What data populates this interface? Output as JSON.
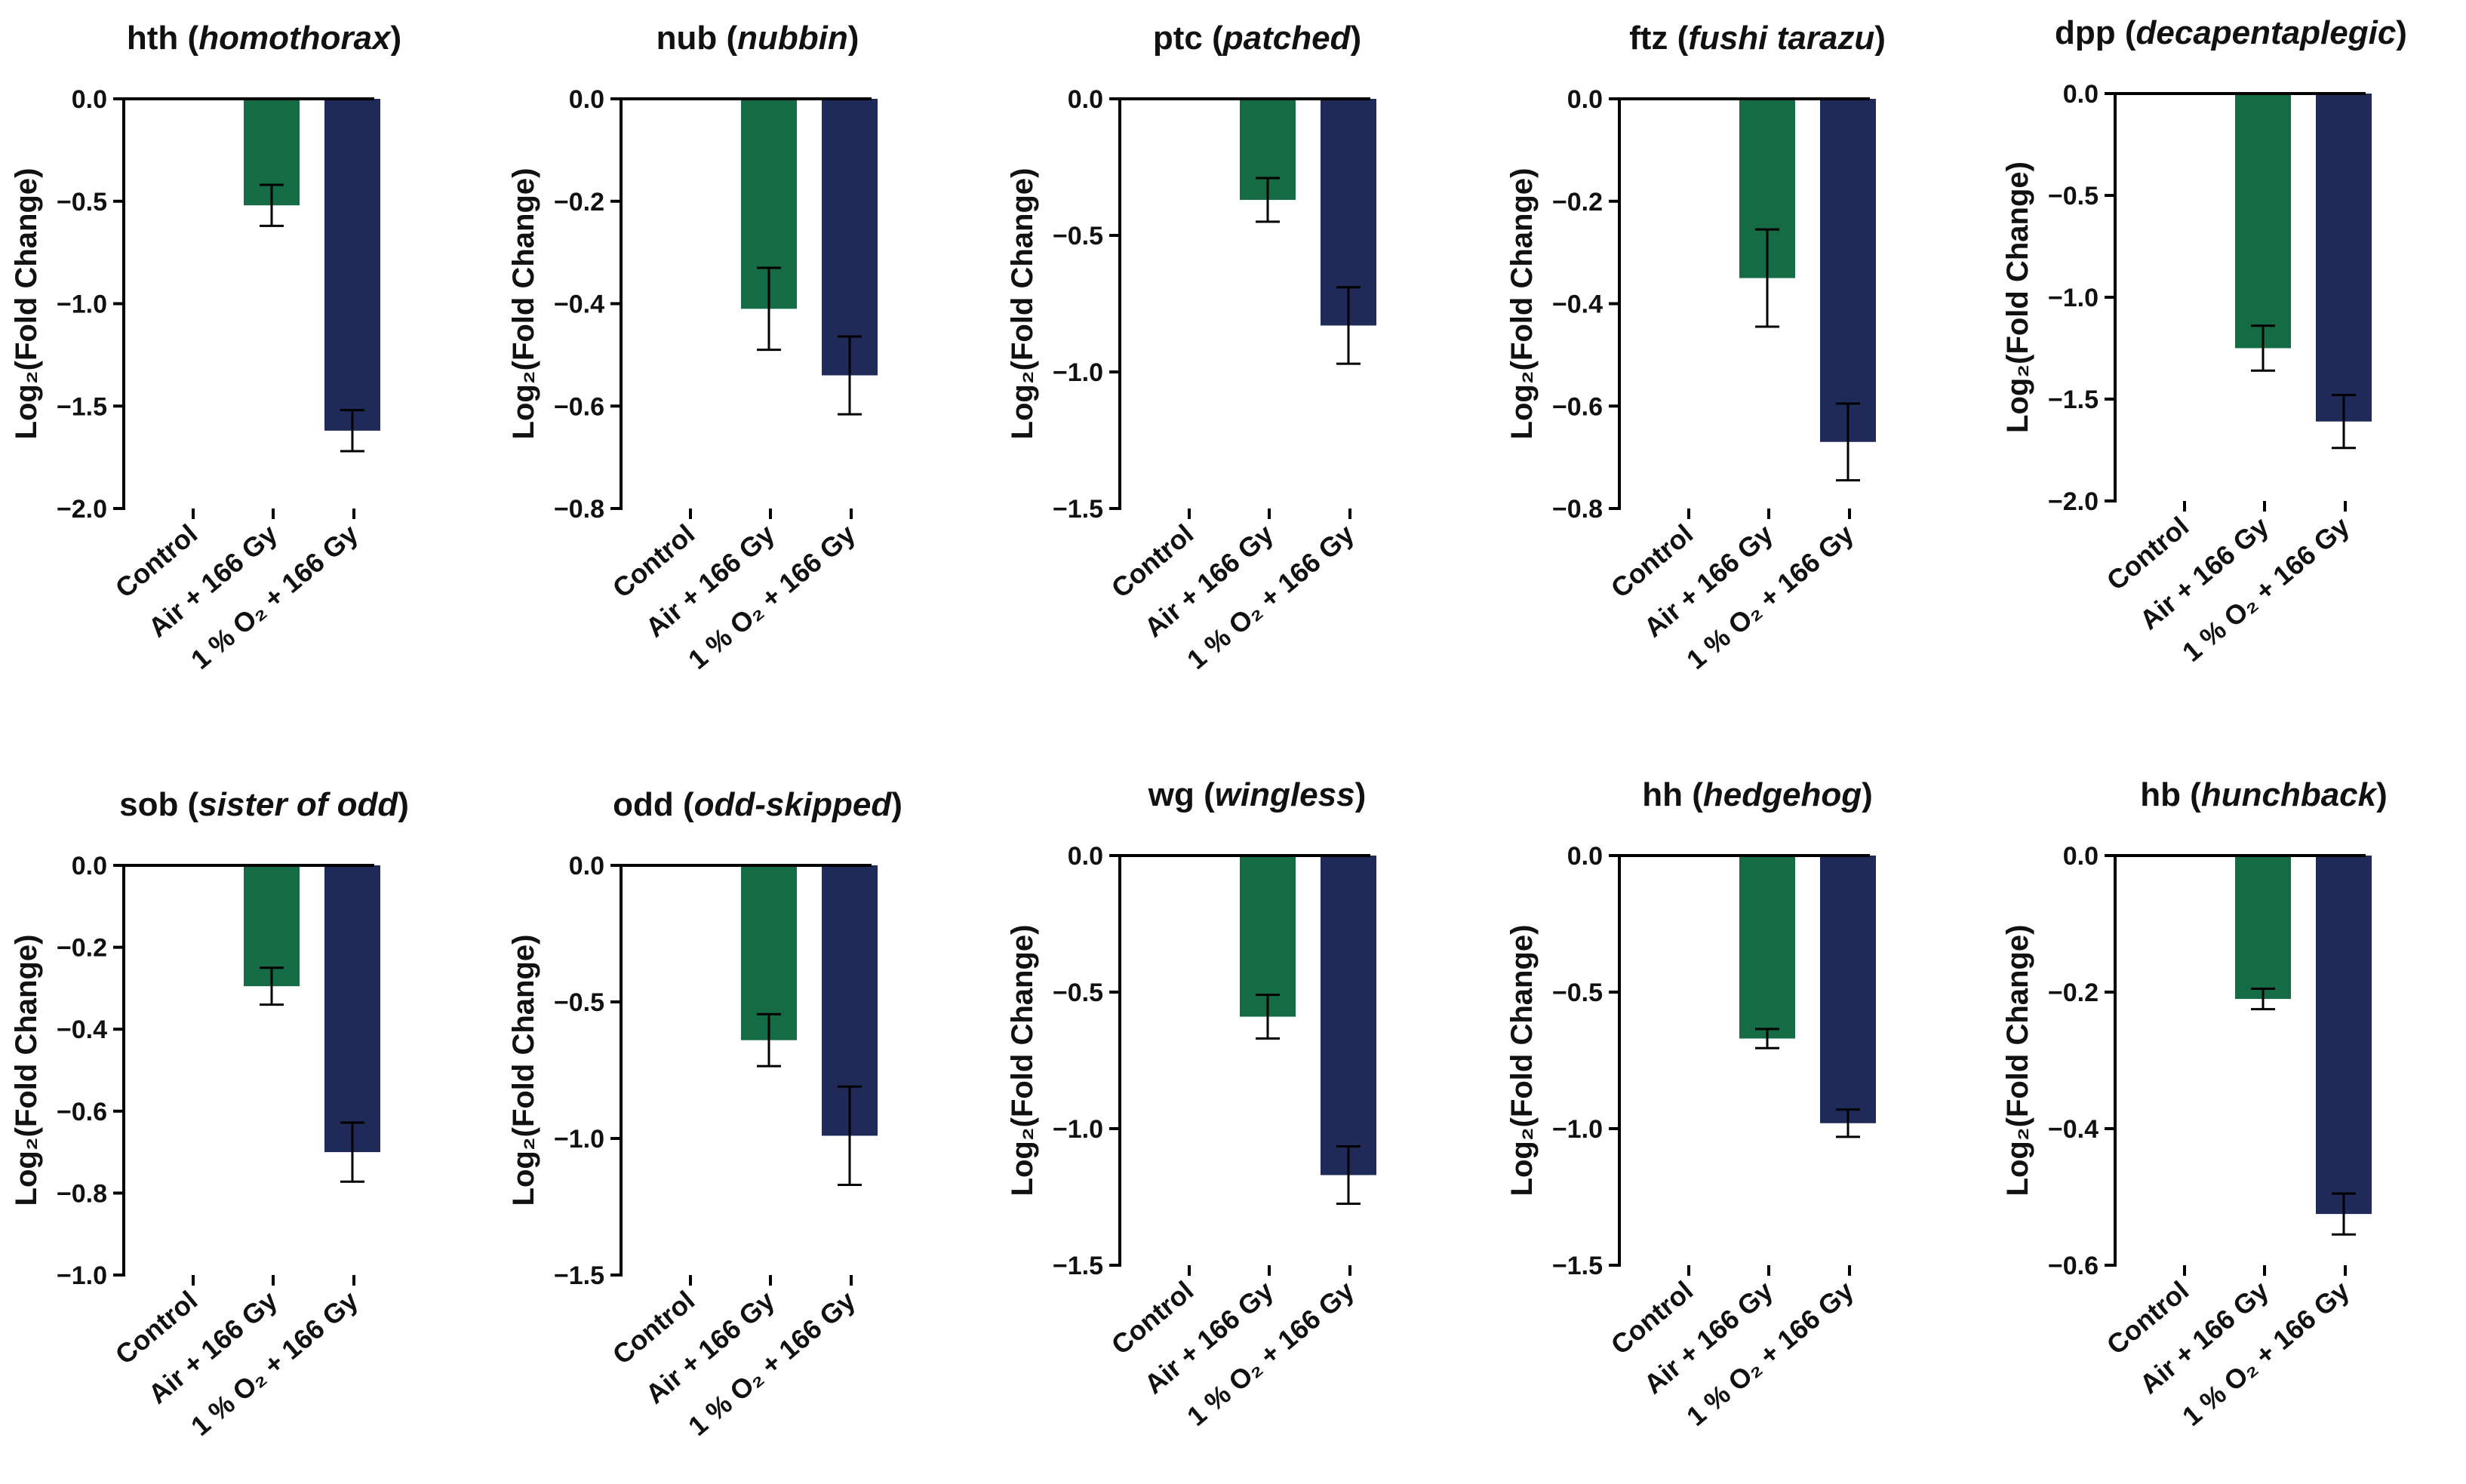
{
  "figure": {
    "categories": [
      "Control",
      "Air + 166 Gy",
      "1 % O₂ + 166 Gy"
    ],
    "ylabel": "Log₂(Fold Change)",
    "colors": {
      "control": "#0e6d43",
      "air": "#156b44",
      "hypoxia": "#1f2a58",
      "axis": "#000000"
    }
  },
  "chart_data": [
    {
      "type": "bar",
      "title": {
        "gene": "hth",
        "name": "homothorax"
      },
      "ylabel": "Log₂(Fold Change)",
      "categories": [
        "Control",
        "Air + 166 Gy",
        "1 % O₂ + 166 Gy"
      ],
      "values": [
        0,
        -0.52,
        -1.62
      ],
      "errors": [
        0,
        0.1,
        0.1
      ],
      "ylim": [
        -2.0,
        0
      ],
      "ticks": [
        0,
        -0.5,
        -1.0,
        -1.5,
        -2.0
      ],
      "tick_labels": [
        "0.0",
        "-0.5",
        "-1.0",
        "-1.5",
        "-2.0"
      ]
    },
    {
      "type": "bar",
      "title": {
        "gene": "nub",
        "name": "nubbin"
      },
      "ylabel": "Log₂(Fold Change)",
      "categories": [
        "Control",
        "Air + 166 Gy",
        "1 % O₂ + 166 Gy"
      ],
      "values": [
        0,
        -0.41,
        -0.54
      ],
      "errors": [
        0,
        0.08,
        0.076
      ],
      "ylim": [
        -0.8,
        0
      ],
      "ticks": [
        0,
        -0.2,
        -0.4,
        -0.6,
        -0.8
      ],
      "tick_labels": [
        "0.0",
        "-0.2",
        "-0.4",
        "-0.6",
        "-0.8"
      ]
    },
    {
      "type": "bar",
      "title": {
        "gene": "ptc",
        "name": "patched"
      },
      "ylabel": "Log₂(Fold Change)",
      "categories": [
        "Control",
        "Air + 166 Gy",
        "1 % O₂ + 166 Gy"
      ],
      "values": [
        0,
        -0.37,
        -0.83
      ],
      "errors": [
        0,
        0.08,
        0.14
      ],
      "ylim": [
        -1.5,
        0
      ],
      "ticks": [
        0,
        -0.5,
        -1.0,
        -1.5
      ],
      "tick_labels": [
        "0.0",
        "-0.5",
        "-1.0",
        "-1.5"
      ]
    },
    {
      "type": "bar",
      "title": {
        "gene": "ftz",
        "name": "fushi tarazu"
      },
      "ylabel": "Log₂(Fold Change)",
      "categories": [
        "Control",
        "Air + 166 Gy",
        "1 % O₂ + 166 Gy"
      ],
      "values": [
        0,
        -0.35,
        -0.67
      ],
      "errors": [
        0,
        0.095,
        0.075
      ],
      "ylim": [
        -0.8,
        0
      ],
      "ticks": [
        0,
        -0.2,
        -0.4,
        -0.6,
        -0.8
      ],
      "tick_labels": [
        "0.0",
        "-0.2",
        "-0.4",
        "-0.6",
        "-0.8"
      ]
    },
    {
      "type": "bar",
      "title": {
        "gene": "dpp",
        "name": "decapentaplegic"
      },
      "ylabel": "Log₂(Fold Change)",
      "categories": [
        "Control",
        "Air + 166 Gy",
        "1 % O₂ + 166 Gy"
      ],
      "values": [
        0,
        -1.25,
        -1.61
      ],
      "errors": [
        0,
        0.11,
        0.13
      ],
      "ylim": [
        -2.0,
        0
      ],
      "ticks": [
        0,
        -0.5,
        -1.0,
        -1.5,
        -2.0
      ],
      "tick_labels": [
        "0.0",
        "-0.5",
        "-1.0",
        "-1.5",
        "-2.0"
      ]
    },
    {
      "type": "bar",
      "title": {
        "gene": "sob",
        "name": "sister of odd"
      },
      "ylabel": "Log₂(Fold Change)",
      "categories": [
        "Control",
        "Air + 166 Gy",
        "1 % O₂ + 166 Gy"
      ],
      "values": [
        0,
        -0.295,
        -0.7
      ],
      "errors": [
        0,
        0.045,
        0.072
      ],
      "ylim": [
        -1.0,
        0
      ],
      "ticks": [
        0,
        -0.2,
        -0.4,
        -0.6,
        -0.8,
        -1.0
      ],
      "tick_labels": [
        "0.0",
        "-0.2",
        "-0.4",
        "-0.6",
        "-0.8",
        "-1.0"
      ]
    },
    {
      "type": "bar",
      "title": {
        "gene": "odd",
        "name": "odd-skipped"
      },
      "ylabel": "Log₂(Fold Change)",
      "categories": [
        "Control",
        "Air + 166 Gy",
        "1 % O₂ + 166 Gy"
      ],
      "values": [
        0,
        -0.64,
        -0.99
      ],
      "errors": [
        0,
        0.095,
        0.18
      ],
      "ylim": [
        -1.5,
        0
      ],
      "ticks": [
        0,
        -0.5,
        -1.0,
        -1.5
      ],
      "tick_labels": [
        "0.0",
        "-0.5",
        "-1.0",
        "-1.5"
      ]
    },
    {
      "type": "bar",
      "title": {
        "gene": "wg",
        "name": "wingless"
      },
      "ylabel": "Log₂(Fold Change)",
      "categories": [
        "Control",
        "Air + 166 Gy",
        "1 % O₂ + 166 Gy"
      ],
      "values": [
        0,
        -0.59,
        -1.17
      ],
      "errors": [
        0,
        0.08,
        0.105
      ],
      "ylim": [
        -1.5,
        0
      ],
      "ticks": [
        0,
        -0.5,
        -1.0,
        -1.5
      ],
      "tick_labels": [
        "0.0",
        "-0.5",
        "-1.0",
        "-1.5"
      ]
    },
    {
      "type": "bar",
      "title": {
        "gene": "hh",
        "name": "hedgehog"
      },
      "ylabel": "Log₂(Fold Change)",
      "categories": [
        "Control",
        "Air + 166 Gy",
        "1 % O₂ + 166 Gy"
      ],
      "values": [
        0,
        -0.67,
        -0.98
      ],
      "errors": [
        0,
        0.035,
        0.05
      ],
      "ylim": [
        -1.5,
        0
      ],
      "ticks": [
        0,
        -0.5,
        -1.0,
        -1.5
      ],
      "tick_labels": [
        "0.0",
        "-0.5",
        "-1.0",
        "-1.5"
      ]
    },
    {
      "type": "bar",
      "title": {
        "gene": "hb",
        "name": "hunchback"
      },
      "ylabel": "Log₂(Fold Change)",
      "categories": [
        "Control",
        "Air + 166 Gy",
        "1 % O₂ + 166 Gy"
      ],
      "values": [
        0,
        -0.21,
        -0.525
      ],
      "errors": [
        0,
        0.015,
        0.03
      ],
      "ylim": [
        -0.6,
        0
      ],
      "ticks": [
        0,
        -0.2,
        -0.4,
        -0.6
      ],
      "tick_labels": [
        "0.0",
        "-0.2",
        "-0.4",
        "-0.6"
      ]
    }
  ]
}
